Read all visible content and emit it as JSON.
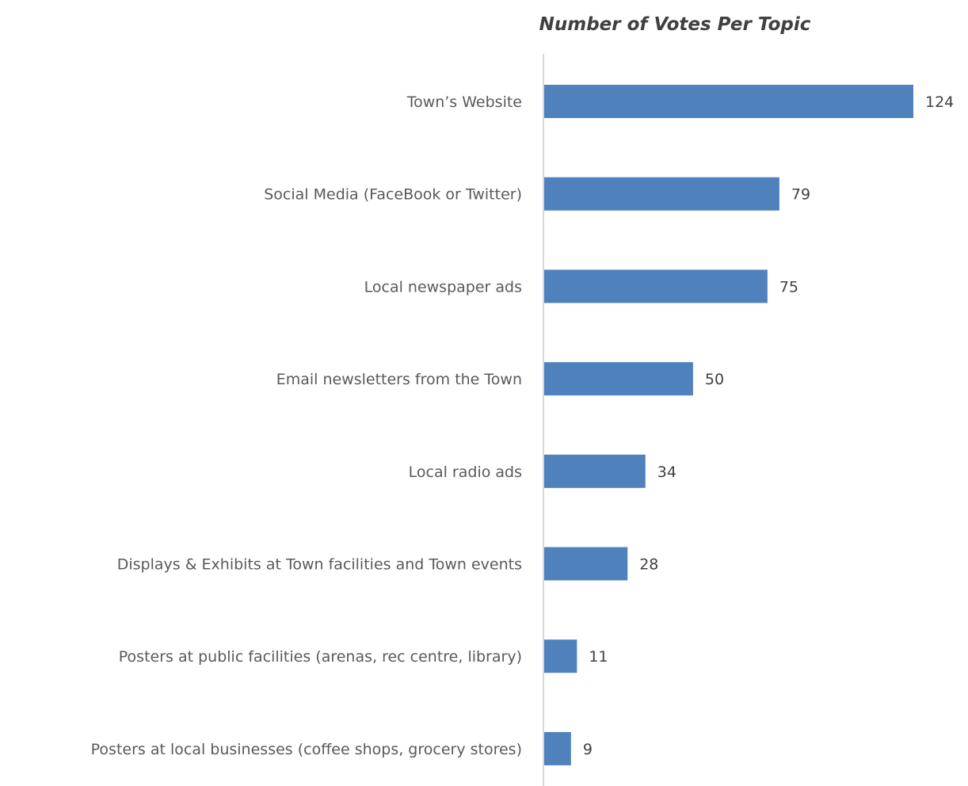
{
  "chart_data": {
    "type": "bar",
    "orientation": "horizontal",
    "title": "Number of Votes Per Topic",
    "xlabel": "",
    "ylabel": "",
    "categories": [
      "Town’s Website",
      "Social Media (FaceBook or Twitter)",
      "Local newspaper ads",
      "Email newsletters from the Town",
      "Local radio ads",
      "Displays & Exhibits at Town facilities and Town events",
      "Posters at public facilities (arenas, rec centre, library)",
      "Posters at local businesses (coffee shops, grocery stores)"
    ],
    "values": [
      124,
      79,
      75,
      50,
      34,
      28,
      11,
      9
    ],
    "xlim": [
      0,
      124
    ],
    "grid": false,
    "legend": "none",
    "data_labels": true,
    "colors": {
      "bar": "#4f81bd",
      "axis": "#d9d9d9"
    }
  }
}
